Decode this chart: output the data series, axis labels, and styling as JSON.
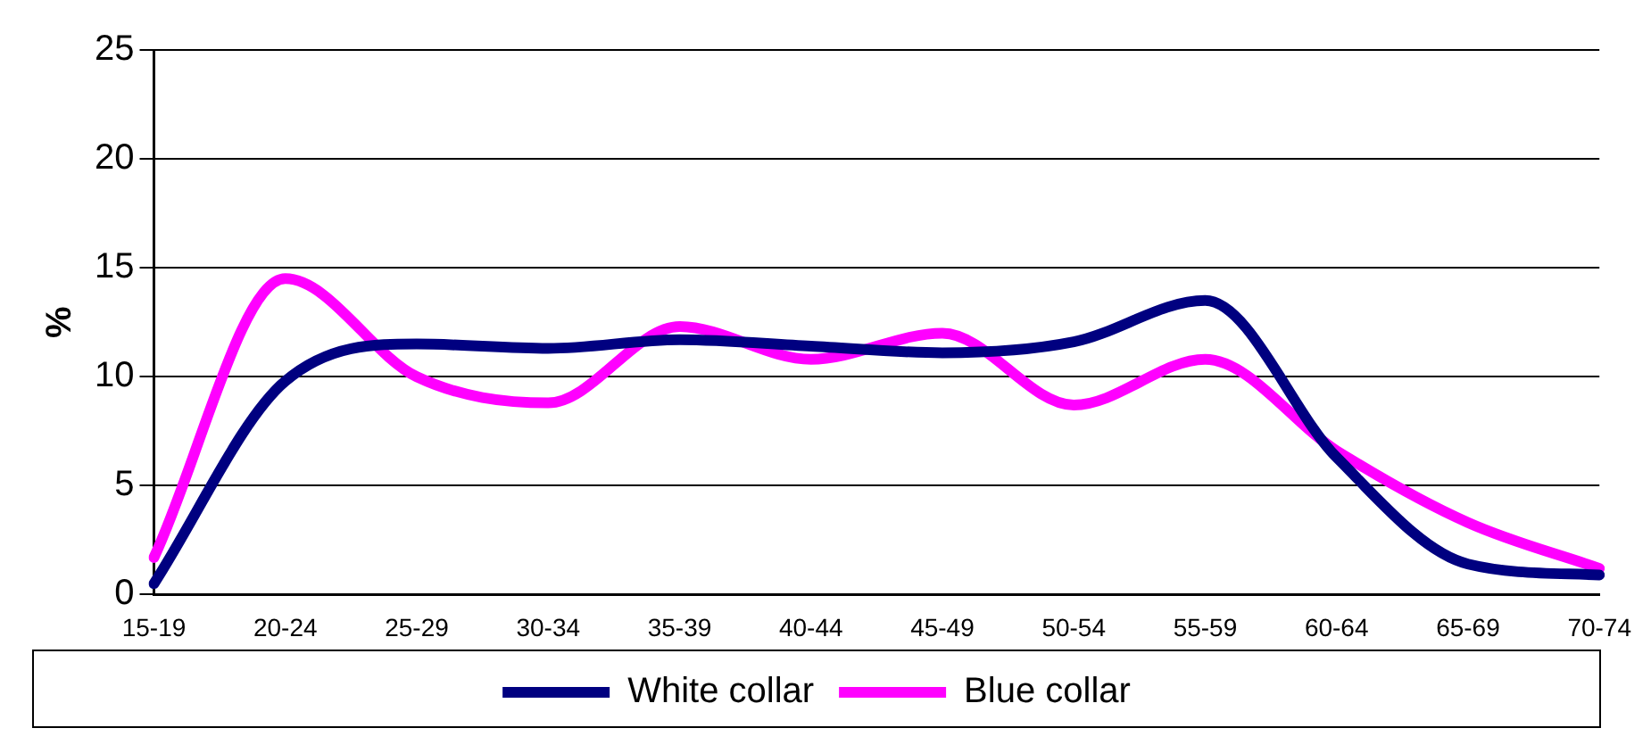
{
  "chart_data": {
    "type": "line",
    "ylabel": "%",
    "categories": [
      "15-19",
      "20-24",
      "25-29",
      "30-34",
      "35-39",
      "40-44",
      "45-49",
      "50-54",
      "55-59",
      "60-64",
      "65-69",
      "70-74"
    ],
    "series": [
      {
        "name": "White collar",
        "color": "#000080",
        "values": [
          0.5,
          9.8,
          11.5,
          11.3,
          11.7,
          11.4,
          11.1,
          11.6,
          13.5,
          6.3,
          1.4,
          0.9
        ]
      },
      {
        "name": "Blue collar",
        "color": "#ff00ff",
        "values": [
          1.7,
          14.5,
          10.0,
          8.8,
          12.3,
          10.8,
          12.0,
          8.7,
          10.8,
          6.6,
          3.3,
          1.2
        ]
      }
    ],
    "ylim": [
      0,
      25
    ],
    "yticks": [
      0,
      5,
      10,
      15,
      20,
      25
    ],
    "grid": "y",
    "legend": "bottom",
    "marker": "none",
    "line_style": "solid"
  }
}
